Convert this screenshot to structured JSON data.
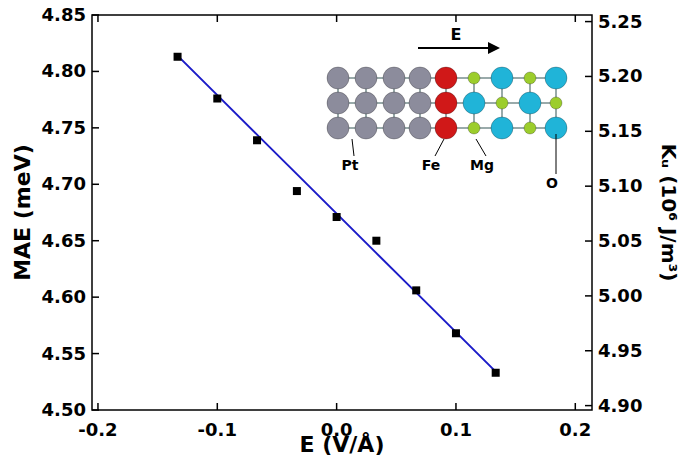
{
  "chart_data": {
    "type": "scatter",
    "xlabel": "E (V/Å)",
    "ylabel": "MAE (meV)",
    "y2label": "Kᵤ (10⁶ J/m³)",
    "x": [
      -0.1333,
      -0.1,
      -0.0667,
      -0.0333,
      0,
      0.0333,
      0.0667,
      0.1,
      0.1333
    ],
    "series": [
      {
        "type": "scatter",
        "color": "#000000",
        "marker": "square",
        "values": [
          4.813,
          4.776,
          4.739,
          4.694,
          4.671,
          4.65,
          4.606,
          4.568,
          4.533
        ]
      },
      {
        "type": "line",
        "color": "#1c1cc8",
        "line_style": "solid",
        "values": [
          4.814,
          4.779,
          4.744,
          4.709,
          4.674,
          4.639,
          4.604,
          4.569,
          4.534
        ]
      }
    ],
    "xlim": [
      -0.205,
      0.214
    ],
    "xticks": [
      -0.2,
      -0.1,
      {
        "value": 0,
        "label": "0.0"
      },
      0.1,
      0.2
    ],
    "ylim": [
      4.5,
      4.85
    ],
    "yticks": [
      {
        "value": 4.5,
        "label": "4.50"
      },
      4.55,
      {
        "value": 4.6,
        "label": "4.60"
      },
      4.65,
      {
        "value": 4.7,
        "label": "4.70"
      },
      4.75,
      {
        "value": 4.8,
        "label": "4.80"
      },
      4.85
    ],
    "y2lim": [
      4.896,
      5.256
    ],
    "y2ticks": [
      {
        "value": 4.9,
        "label": "4.90"
      },
      4.95,
      {
        "value": 5.0,
        "label": "5.00"
      },
      5.05,
      {
        "value": 5.1,
        "label": "5.10"
      },
      5.15,
      {
        "value": 5.2,
        "label": "5.20"
      },
      5.25
    ],
    "grid": false,
    "inset": {
      "field_label": "E",
      "labels": [
        "Pt",
        "Fe",
        "Mg",
        "O"
      ]
    }
  }
}
